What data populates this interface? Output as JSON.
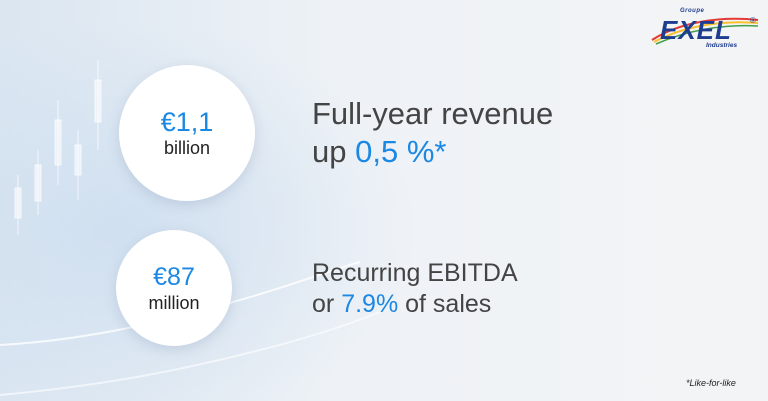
{
  "logo": {
    "groupe": "Groupe",
    "brand": "EXEL",
    "registered": "®",
    "industries": "Industries"
  },
  "metric_revenue": {
    "amount": "€1,1",
    "unit": "billion",
    "line1": "Full-year revenue",
    "line2_prefix": "up ",
    "line2_highlight": "0,5 %*"
  },
  "metric_ebitda": {
    "amount": "€87",
    "unit": "million",
    "line1": "Recurring EBITDA",
    "line2_prefix": "or ",
    "line2_highlight": "7.9%",
    "line2_suffix": " of sales"
  },
  "footnote": "*Like-for-like",
  "colors": {
    "accent": "#1b88e3",
    "brand": "#1e3d8f",
    "text": "#444444"
  }
}
